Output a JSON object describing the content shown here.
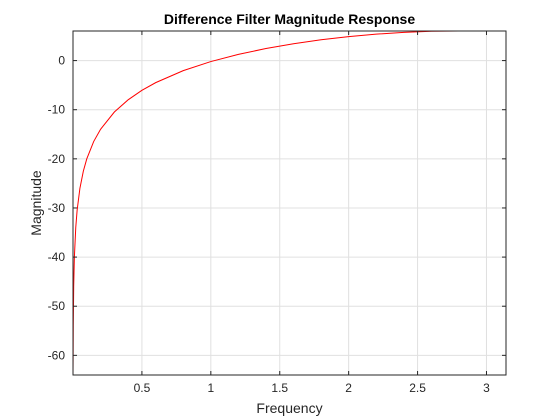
{
  "chart_data": {
    "type": "line",
    "title": "Difference Filter Magnitude Response",
    "xlabel": "Frequency",
    "ylabel": "Magnitude",
    "xlim": [
      0,
      3.1416
    ],
    "ylim": [
      -64,
      6.02
    ],
    "xticks": [
      0.5,
      1,
      1.5,
      2,
      2.5,
      3
    ],
    "xtick_labels": [
      "0.5",
      "1",
      "1.5",
      "2",
      "2.5",
      "3"
    ],
    "yticks": [
      -60,
      -50,
      -40,
      -30,
      -20,
      -10,
      0
    ],
    "ytick_labels": [
      "-60",
      "-50",
      "-40",
      "-30",
      "-20",
      "-10",
      "0"
    ],
    "grid": true,
    "series": [
      {
        "color": "#ff0000",
        "x": [
          0.001,
          0.002,
          0.005,
          0.01,
          0.02,
          0.03,
          0.05,
          0.075,
          0.1,
          0.15,
          0.2,
          0.3,
          0.4,
          0.5,
          0.6,
          0.8,
          1.0,
          1.2,
          1.4,
          1.6,
          1.8,
          2.0,
          2.2,
          2.4,
          2.6,
          2.8,
          3.0,
          3.1416
        ],
        "y": [
          -60.0,
          -53.98,
          -46.02,
          -40.0,
          -33.98,
          -30.46,
          -26.02,
          -22.5,
          -20.0,
          -16.48,
          -13.98,
          -10.47,
          -7.98,
          -6.05,
          -4.49,
          -2.05,
          -0.2,
          1.27,
          2.45,
          3.43,
          4.23,
          4.88,
          5.38,
          5.74,
          5.96,
          6.01,
          6.02,
          6.02
        ]
      }
    ],
    "colors": {
      "line": "#ff0000",
      "grid": "#e0e0e0",
      "axes": "#262626"
    }
  }
}
